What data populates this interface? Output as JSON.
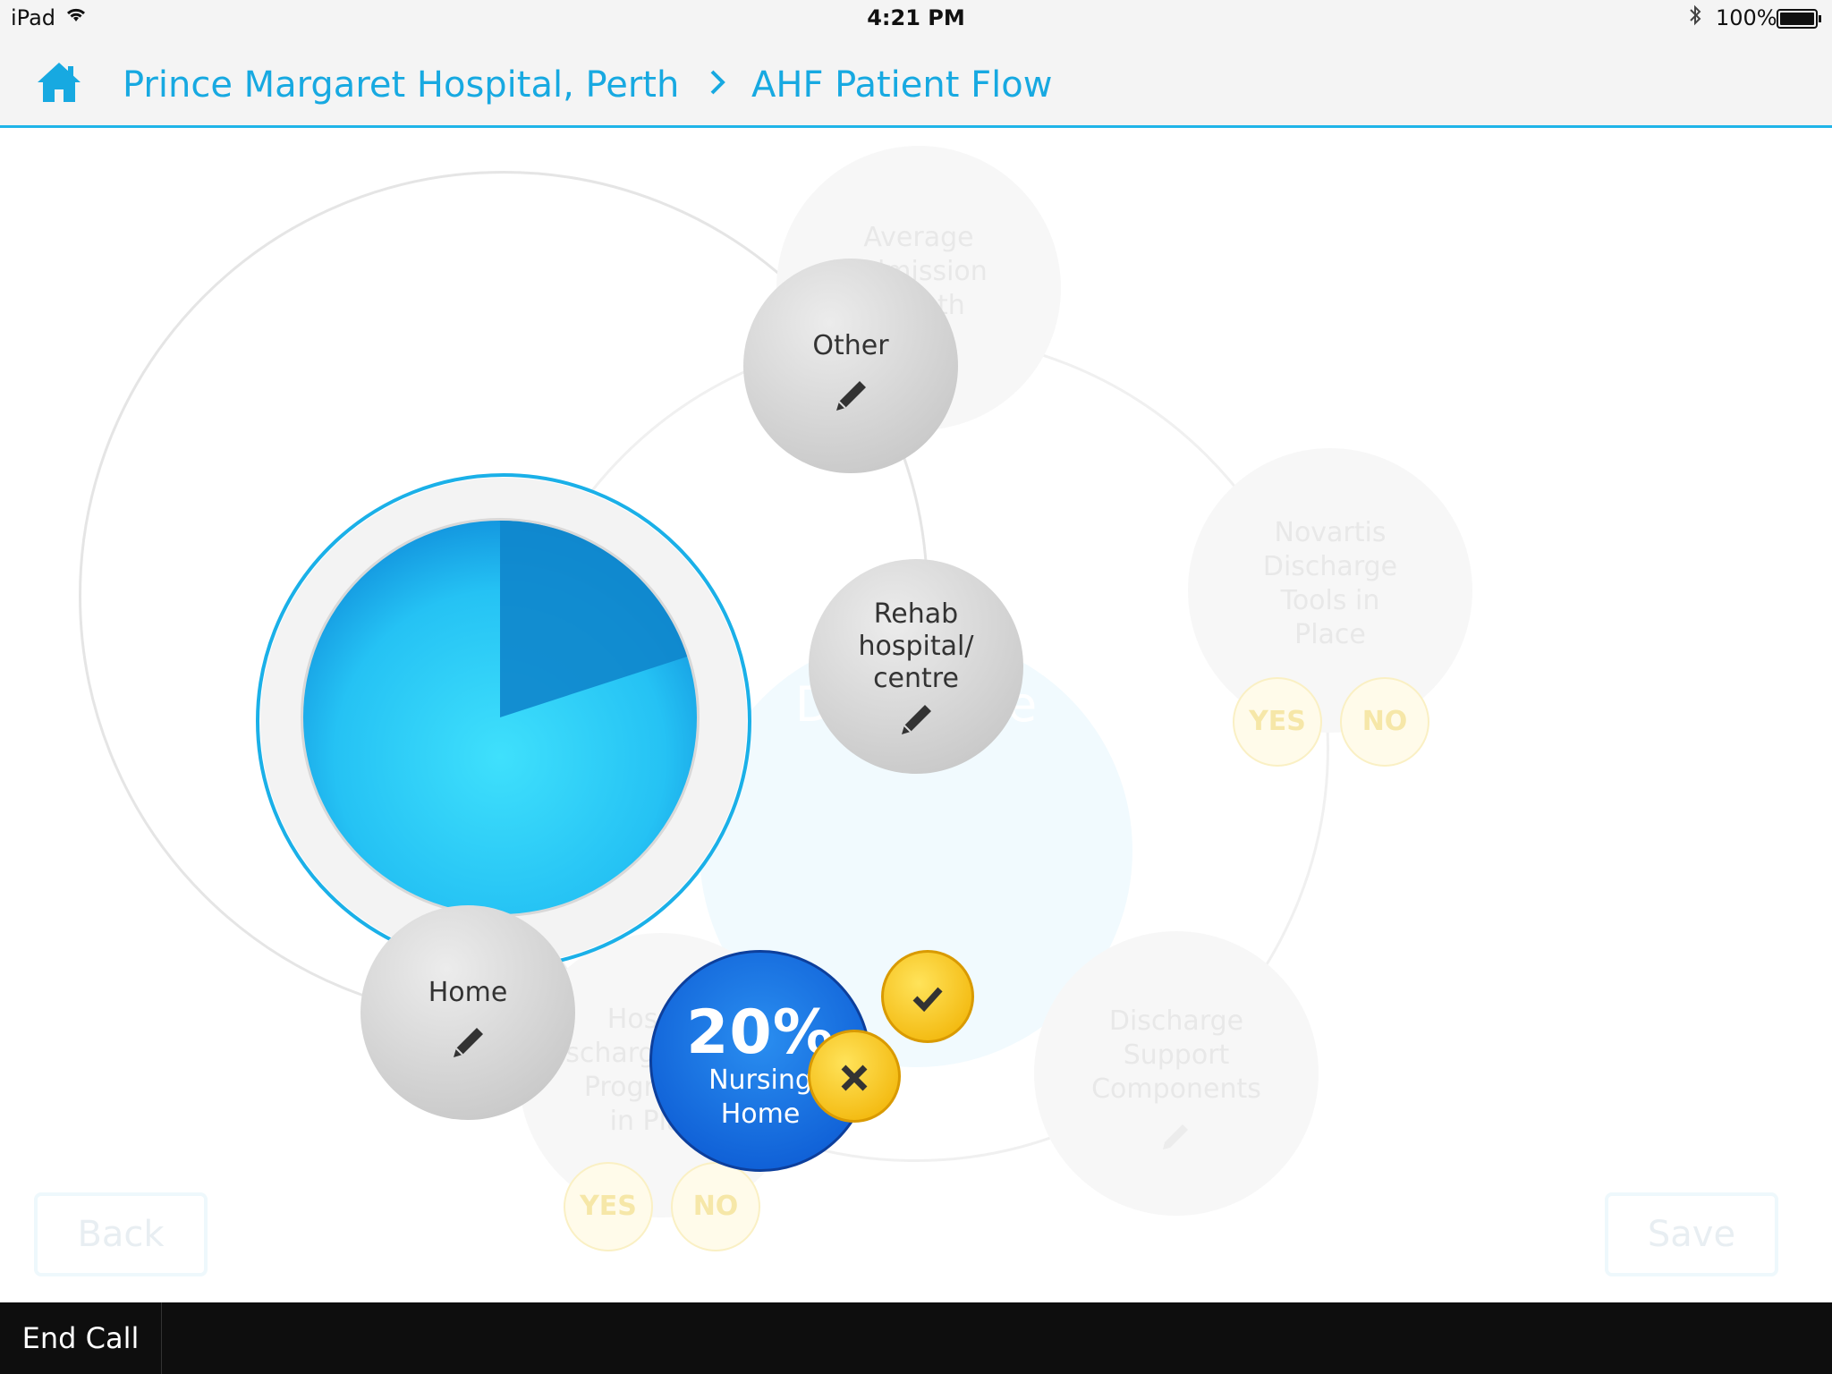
{
  "status_bar": {
    "device": "iPad",
    "time": "4:21 PM",
    "battery": "100%"
  },
  "nav": {
    "breadcrumb_hospital": "Prince Margaret Hospital, Perth",
    "separator": ">",
    "breadcrumb_page": "AHF Patient Flow"
  },
  "background_nodes": {
    "average_admission": "Average\nAdmission\nLength",
    "center_bubble": "Discharge",
    "novartis_tools": "Novartis\nDischarge\nTools in\nPlace",
    "hospital_support": "Hospital\nDischarge Support\nProgramme\nin Place",
    "discharge_components": "Discharge\nSupport\nComponents",
    "yes": "YES",
    "no": "NO"
  },
  "destinations": {
    "other": "Other",
    "rehab": "Rehab\nhospital/\ncentre",
    "home": "Home",
    "nursing_home": {
      "percent": "20%",
      "label": "Nursing\nHome"
    }
  },
  "pie": {
    "highlighted_fraction": 0.2
  },
  "buttons": {
    "confirm_icon": "check-icon",
    "cancel_icon": "close-icon",
    "back": "Back",
    "save": "Save"
  },
  "bottom_bar": {
    "end_call": "End Call"
  },
  "colors": {
    "accent": "#17a9e1",
    "pie_light": "#35d0f8",
    "pie_dark": "#0f86cc",
    "selected": "#1668e0",
    "yellow": "#f6c81e"
  }
}
